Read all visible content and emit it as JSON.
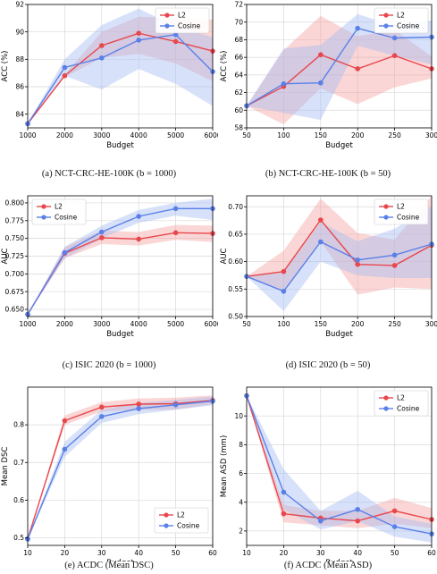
{
  "colors": {
    "l2": "#e8474c",
    "cosine": "#5a80e8",
    "l2_band": "#f3a3a5",
    "cosine_band": "#a7bdf2"
  },
  "chart_data": [
    {
      "type": "line",
      "caption": "(a) NCT-CRC-HE-100K (b = 1000)",
      "xlabel": "Budget",
      "ylabel": "ACC (%)",
      "xlim": [
        1000,
        6000
      ],
      "ylim": [
        83,
        92
      ],
      "xticks": [
        1000,
        2000,
        3000,
        4000,
        5000,
        6000
      ],
      "yticks": [
        84,
        86,
        88,
        90,
        92
      ],
      "ytick_labels": [
        "84",
        "86",
        "88",
        "90",
        "92"
      ],
      "x": [
        1000,
        2000,
        3000,
        4000,
        5000,
        6000
      ],
      "legend": "top-right",
      "grid": true,
      "series": [
        {
          "name": "L2",
          "values": [
            83.3,
            86.8,
            89.0,
            89.9,
            89.3,
            88.6
          ],
          "lower": [
            83.3,
            86.7,
            88.1,
            88.4,
            87.7,
            86.4
          ],
          "upper": [
            83.3,
            86.9,
            90.0,
            91.1,
            91.0,
            90.9
          ]
        },
        {
          "name": "Cosine",
          "values": [
            83.3,
            87.4,
            88.1,
            89.4,
            89.8,
            87.1
          ],
          "lower": [
            83.3,
            86.8,
            85.8,
            87.3,
            86.2,
            84.6
          ],
          "upper": [
            83.3,
            88.0,
            90.5,
            91.7,
            90.4,
            89.6
          ]
        }
      ]
    },
    {
      "type": "line",
      "caption": "(b) NCT-CRC-HE-100K (b = 50)",
      "xlabel": "Budget",
      "ylabel": "ACC (%)",
      "xlim": [
        50,
        300
      ],
      "ylim": [
        58,
        72
      ],
      "xticks": [
        50,
        100,
        150,
        200,
        250,
        300
      ],
      "yticks": [
        58,
        60,
        62,
        64,
        66,
        68,
        70,
        72
      ],
      "ytick_labels": [
        "58",
        "60",
        "62",
        "64",
        "66",
        "68",
        "70",
        "72"
      ],
      "x": [
        50,
        100,
        150,
        200,
        250,
        300
      ],
      "legend": "top-right",
      "grid": true,
      "series": [
        {
          "name": "L2",
          "values": [
            60.5,
            62.7,
            66.3,
            64.7,
            66.2,
            64.7
          ],
          "lower": [
            60.5,
            58.4,
            62.5,
            60.7,
            62.6,
            63.6
          ],
          "upper": [
            60.5,
            66.8,
            70.7,
            68.4,
            69.1,
            66.1
          ]
        },
        {
          "name": "Cosine",
          "values": [
            60.5,
            63.0,
            63.1,
            69.3,
            68.2,
            68.3
          ],
          "lower": [
            60.5,
            59.7,
            58.9,
            67.3,
            66.2,
            65.2
          ],
          "upper": [
            60.5,
            67.0,
            67.4,
            70.9,
            69.6,
            70.2
          ]
        }
      ]
    },
    {
      "type": "line",
      "caption": "(c) ISIC 2020 (b = 1000)",
      "xlabel": "Budget",
      "ylabel": "AUC",
      "xlim": [
        1000,
        6000
      ],
      "ylim": [
        0.64,
        0.81
      ],
      "xticks": [
        1000,
        2000,
        3000,
        4000,
        5000,
        6000
      ],
      "yticks": [
        0.65,
        0.675,
        0.7,
        0.725,
        0.75,
        0.775,
        0.8
      ],
      "ytick_labels": [
        "0.650",
        "0.675",
        "0.700",
        "0.725",
        "0.750",
        "0.775",
        "0.800"
      ],
      "x": [
        1000,
        2000,
        3000,
        4000,
        5000,
        6000
      ],
      "legend": "top-left",
      "grid": true,
      "series": [
        {
          "name": "L2",
          "values": [
            0.643,
            0.729,
            0.751,
            0.749,
            0.758,
            0.757
          ],
          "lower": [
            0.643,
            0.722,
            0.742,
            0.74,
            0.748,
            0.745
          ],
          "upper": [
            0.643,
            0.738,
            0.761,
            0.759,
            0.769,
            0.768
          ]
        },
        {
          "name": "Cosine",
          "values": [
            0.643,
            0.73,
            0.759,
            0.781,
            0.792,
            0.792
          ],
          "lower": [
            0.643,
            0.722,
            0.75,
            0.772,
            0.782,
            0.776
          ],
          "upper": [
            0.643,
            0.738,
            0.768,
            0.79,
            0.8,
            0.806
          ]
        }
      ]
    },
    {
      "type": "line",
      "caption": "(d) ISIC 2020 (b = 50)",
      "xlabel": "Budget",
      "ylabel": "AUC",
      "xlim": [
        50,
        300
      ],
      "ylim": [
        0.5,
        0.72
      ],
      "xticks": [
        50,
        100,
        150,
        200,
        250,
        300
      ],
      "yticks": [
        0.5,
        0.55,
        0.6,
        0.65,
        0.7
      ],
      "ytick_labels": [
        "0.50",
        "0.55",
        "0.60",
        "0.65",
        "0.70"
      ],
      "x": [
        50,
        100,
        150,
        200,
        250,
        300
      ],
      "legend": "top-right",
      "grid": true,
      "series": [
        {
          "name": "L2",
          "values": [
            0.573,
            0.582,
            0.676,
            0.595,
            0.593,
            0.63
          ],
          "lower": [
            0.573,
            0.545,
            0.637,
            0.54,
            0.553,
            0.55
          ],
          "upper": [
            0.573,
            0.62,
            0.715,
            0.652,
            0.64,
            0.72
          ]
        },
        {
          "name": "Cosine",
          "values": [
            0.573,
            0.546,
            0.636,
            0.603,
            0.612,
            0.632
          ],
          "lower": [
            0.573,
            0.51,
            0.6,
            0.575,
            0.57,
            0.57
          ],
          "upper": [
            0.573,
            0.58,
            0.672,
            0.637,
            0.66,
            0.7
          ]
        }
      ]
    },
    {
      "type": "line",
      "caption": "(e) ACDC (Mean DSC)",
      "xlabel": "Budget",
      "ylabel": "Mean DSC",
      "xlim": [
        10,
        60
      ],
      "ylim": [
        0.48,
        0.9
      ],
      "xticks": [
        10,
        20,
        30,
        40,
        50,
        60
      ],
      "yticks": [
        0.5,
        0.6,
        0.7,
        0.8
      ],
      "ytick_labels": [
        "0.5",
        "0.6",
        "0.7",
        "0.8"
      ],
      "x": [
        10,
        20,
        30,
        40,
        50,
        60
      ],
      "legend": "bottom-right",
      "grid": true,
      "series": [
        {
          "name": "L2",
          "values": [
            0.497,
            0.811,
            0.847,
            0.855,
            0.856,
            0.865
          ],
          "lower": [
            0.497,
            0.8,
            0.835,
            0.84,
            0.84,
            0.855
          ],
          "upper": [
            0.497,
            0.825,
            0.86,
            0.87,
            0.872,
            0.878
          ]
        },
        {
          "name": "Cosine",
          "values": [
            0.497,
            0.735,
            0.822,
            0.843,
            0.853,
            0.863
          ],
          "lower": [
            0.497,
            0.715,
            0.805,
            0.828,
            0.84,
            0.852
          ],
          "upper": [
            0.497,
            0.755,
            0.84,
            0.858,
            0.866,
            0.875
          ]
        }
      ]
    },
    {
      "type": "line",
      "caption": "(f) ACDC (Mean ASD)",
      "xlabel": "Budget",
      "ylabel": "Mean ASD (mm)",
      "xlim": [
        10,
        60
      ],
      "ylim": [
        1,
        12
      ],
      "xticks": [
        10,
        20,
        30,
        40,
        50,
        60
      ],
      "yticks": [
        2,
        4,
        6,
        8,
        10
      ],
      "ytick_labels": [
        "2",
        "4",
        "6",
        "8",
        "10"
      ],
      "x": [
        10,
        20,
        30,
        40,
        50,
        60
      ],
      "legend": "top-right",
      "grid": true,
      "series": [
        {
          "name": "L2",
          "values": [
            11.4,
            3.2,
            2.9,
            2.7,
            3.4,
            2.8
          ],
          "lower": [
            11.4,
            2.6,
            2.4,
            2.2,
            2.5,
            2.2
          ],
          "upper": [
            11.4,
            3.8,
            3.4,
            3.4,
            4.3,
            3.6
          ]
        },
        {
          "name": "Cosine",
          "values": [
            11.4,
            4.7,
            2.7,
            3.5,
            2.3,
            1.8
          ],
          "lower": [
            11.4,
            3.5,
            2.1,
            2.7,
            1.6,
            1.2
          ],
          "upper": [
            11.4,
            6.3,
            3.4,
            4.8,
            3.0,
            2.5
          ]
        }
      ]
    }
  ]
}
